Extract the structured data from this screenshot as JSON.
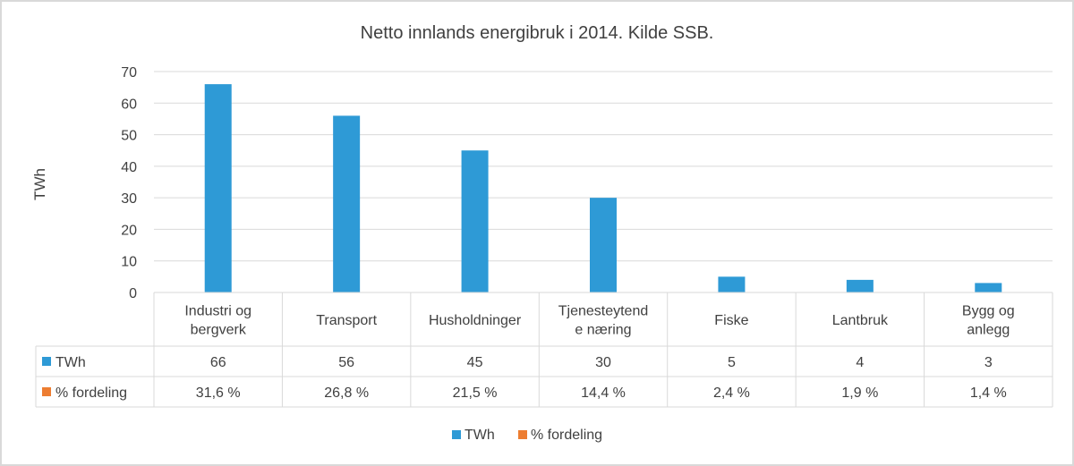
{
  "chart_data": {
    "type": "bar",
    "title": "Netto innlands energibruk i 2014.  Kilde SSB.",
    "ylabel": "TWh",
    "ylim": [
      0,
      70
    ],
    "yticks": [
      0,
      10,
      20,
      30,
      40,
      50,
      60,
      70
    ],
    "grid": true,
    "legend_position": "bottom",
    "categories": [
      [
        "Industri og",
        "bergverk"
      ],
      [
        "Transport"
      ],
      [
        "Husholdninger"
      ],
      [
        "Tjenesteytend",
        "e næring"
      ],
      [
        "Fiske"
      ],
      [
        "Lantbruk"
      ],
      [
        "Bygg og",
        "anlegg"
      ]
    ],
    "series": [
      {
        "name": "TWh",
        "color": "#2e9ad6",
        "values": [
          66,
          56,
          45,
          30,
          5,
          4,
          3
        ],
        "table_values": [
          "66",
          "56",
          "45",
          "30",
          "5",
          "4",
          "3"
        ]
      },
      {
        "name": "% fordeling",
        "color": "#ed7d31",
        "values": [
          31.6,
          26.8,
          21.5,
          14.4,
          2.4,
          1.9,
          1.4
        ],
        "table_values": [
          "31,6 %",
          "26,8 %",
          "21,5 %",
          "14,4 %",
          "2,4 %",
          "1,9 %",
          "1,4 %"
        ]
      }
    ]
  }
}
